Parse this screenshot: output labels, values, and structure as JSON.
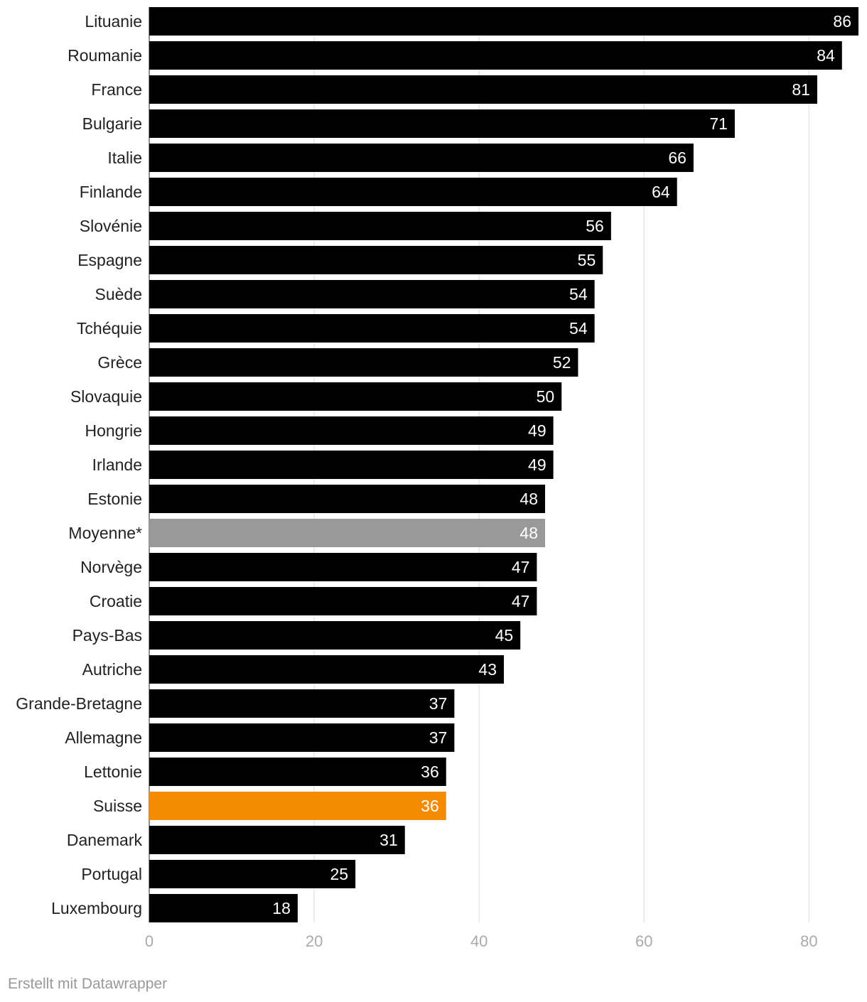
{
  "chart_data": {
    "type": "bar",
    "orientation": "horizontal",
    "categories": [
      "Lituanie",
      "Roumanie",
      "France",
      "Bulgarie",
      "Italie",
      "Finlande",
      "Slovénie",
      "Espagne",
      "Suède",
      "Tchéquie",
      "Grèce",
      "Slovaquie",
      "Hongrie",
      "Irlande",
      "Estonie",
      "Moyenne*",
      "Norvège",
      "Croatie",
      "Pays-Bas",
      "Autriche",
      "Grande-Bretagne",
      "Allemagne",
      "Lettonie",
      "Suisse",
      "Danemark",
      "Portugal",
      "Luxembourg"
    ],
    "values": [
      86,
      84,
      81,
      71,
      66,
      64,
      56,
      55,
      54,
      54,
      52,
      50,
      49,
      49,
      48,
      48,
      47,
      47,
      45,
      43,
      37,
      37,
      36,
      36,
      31,
      25,
      18
    ],
    "highlights": {
      "Moyenne*": "#999999",
      "Suisse": "#f58b00"
    },
    "default_color": "#000000",
    "xlim": [
      0,
      86
    ],
    "xticks": [
      0,
      20,
      40,
      60,
      80
    ],
    "grid": true,
    "title": "",
    "xlabel": "",
    "ylabel": ""
  },
  "footer": {
    "credit": "Erstellt mit Datawrapper"
  }
}
